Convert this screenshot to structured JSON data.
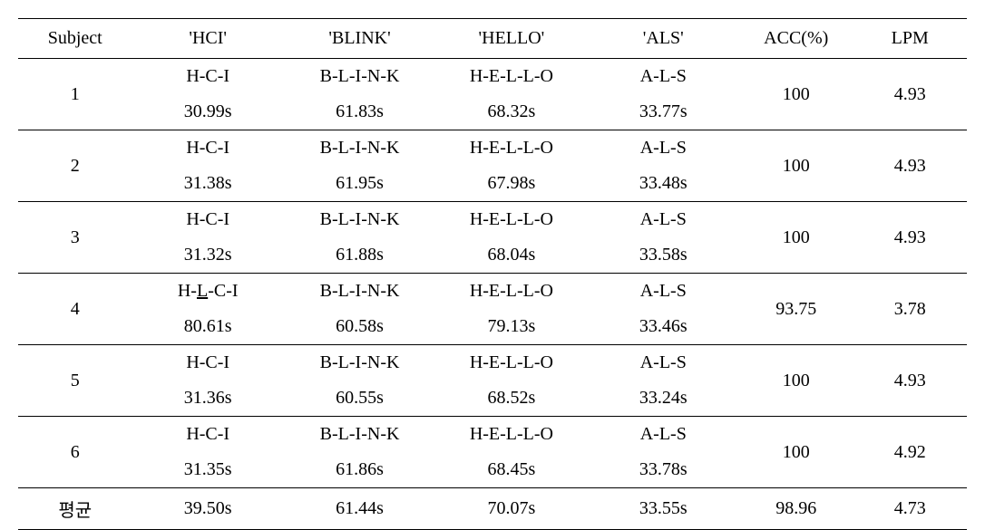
{
  "headers": {
    "subject": "Subject",
    "hci": "'HCI'",
    "blink": "'BLINK'",
    "hello": "'HELLO'",
    "als": "'ALS'",
    "acc": "ACC(%)",
    "lpm": "LPM"
  },
  "rows": [
    {
      "subject": "1",
      "hci_text": "H-C-I",
      "hci_time": "30.99s",
      "blink_text": "B-L-I-N-K",
      "blink_time": "61.83s",
      "hello_text": "H-E-L-L-O",
      "hello_time": "68.32s",
      "als_text": "A-L-S",
      "als_time": "33.77s",
      "acc": "100",
      "lpm": "4.93",
      "hci_has_underline": false
    },
    {
      "subject": "2",
      "hci_text": "H-C-I",
      "hci_time": "31.38s",
      "blink_text": "B-L-I-N-K",
      "blink_time": "61.95s",
      "hello_text": "H-E-L-L-O",
      "hello_time": "67.98s",
      "als_text": "A-L-S",
      "als_time": "33.48s",
      "acc": "100",
      "lpm": "4.93",
      "hci_has_underline": false
    },
    {
      "subject": "3",
      "hci_text": "H-C-I",
      "hci_time": "31.32s",
      "blink_text": "B-L-I-N-K",
      "blink_time": "61.88s",
      "hello_text": "H-E-L-L-O",
      "hello_time": "68.04s",
      "als_text": "A-L-S",
      "als_time": "33.58s",
      "acc": "100",
      "lpm": "4.93",
      "hci_has_underline": false
    },
    {
      "subject": "4",
      "hci_text_parts": [
        "H-",
        "L",
        "-C-I"
      ],
      "hci_time": "80.61s",
      "blink_text": "B-L-I-N-K",
      "blink_time": "60.58s",
      "hello_text": "H-E-L-L-O",
      "hello_time": "79.13s",
      "als_text": "A-L-S",
      "als_time": "33.46s",
      "acc": "93.75",
      "lpm": "3.78",
      "hci_has_underline": true
    },
    {
      "subject": "5",
      "hci_text": "H-C-I",
      "hci_time": "31.36s",
      "blink_text": "B-L-I-N-K",
      "blink_time": "60.55s",
      "hello_text": "H-E-L-L-O",
      "hello_time": "68.52s",
      "als_text": "A-L-S",
      "als_time": "33.24s",
      "acc": "100",
      "lpm": "4.93",
      "hci_has_underline": false
    },
    {
      "subject": "6",
      "hci_text": "H-C-I",
      "hci_time": "31.35s",
      "blink_text": "B-L-I-N-K",
      "blink_time": "61.86s",
      "hello_text": "H-E-L-L-O",
      "hello_time": "68.45s",
      "als_text": "A-L-S",
      "als_time": "33.78s",
      "acc": "100",
      "lpm": "4.92",
      "hci_has_underline": false
    }
  ],
  "average": {
    "label": "평균",
    "hci_time": "39.50s",
    "blink_time": "61.44s",
    "hello_time": "70.07s",
    "als_time": "33.55s",
    "acc": "98.96",
    "lpm": "4.73"
  }
}
